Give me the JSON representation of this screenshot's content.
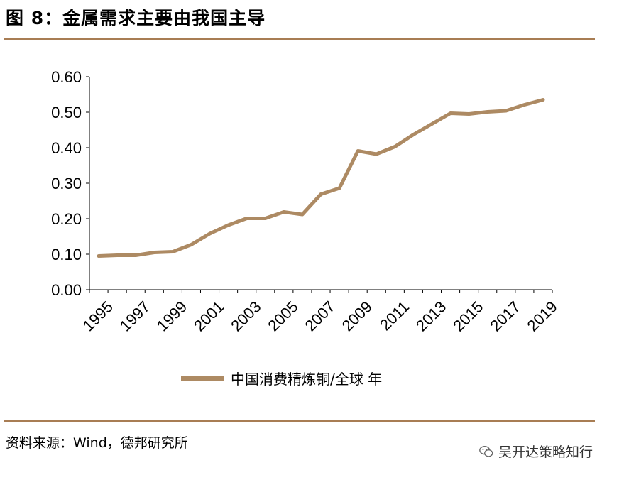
{
  "header": {
    "title": "图 8：金属需求主要由我国主导"
  },
  "footer": {
    "source": "资料来源：Wind，德邦研究所",
    "watermark": "吴开达策略知行",
    "watermark_icon": "wechat-icon"
  },
  "colors": {
    "line": "#ad8a63",
    "rule": "#a87d54",
    "axis": "#000000"
  },
  "chart_data": {
    "type": "line",
    "title": "",
    "xlabel": "",
    "ylabel": "",
    "ylim": [
      0,
      0.6
    ],
    "yticks": [
      "0.00",
      "0.10",
      "0.20",
      "0.30",
      "0.40",
      "0.50",
      "0.60"
    ],
    "x": [
      1995,
      1996,
      1997,
      1998,
      1999,
      2000,
      2001,
      2002,
      2003,
      2004,
      2005,
      2006,
      2007,
      2008,
      2009,
      2010,
      2011,
      2012,
      2013,
      2014,
      2015,
      2016,
      2017,
      2018,
      2019
    ],
    "xtick_labels": [
      "1995",
      "1997",
      "1999",
      "2001",
      "2003",
      "2005",
      "2007",
      "2009",
      "2011",
      "2013",
      "2015",
      "2017",
      "2019"
    ],
    "series": [
      {
        "name": "中国消费精炼铜/全球 年",
        "values": [
          0.095,
          0.097,
          0.097,
          0.105,
          0.107,
          0.127,
          0.158,
          0.182,
          0.201,
          0.201,
          0.219,
          0.212,
          0.269,
          0.286,
          0.391,
          0.382,
          0.403,
          0.437,
          0.467,
          0.497,
          0.495,
          0.501,
          0.504,
          0.521,
          0.535
        ]
      }
    ],
    "legend": "bottom-center",
    "grid": false
  }
}
